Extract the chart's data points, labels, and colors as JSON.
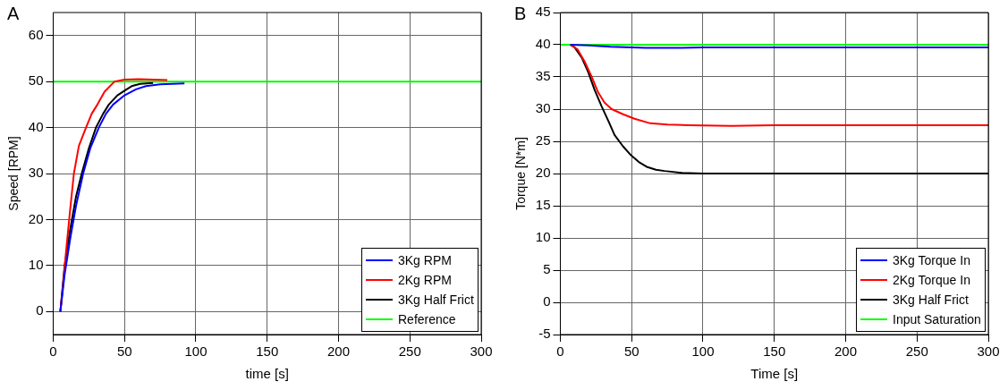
{
  "chart_data": [
    {
      "type": "line",
      "title": "A",
      "xlabel": "time [s]",
      "ylabel": "Speed [RPM]",
      "xlim": [
        0,
        300
      ],
      "xticks": [
        0,
        50,
        100,
        150,
        200,
        250,
        300
      ],
      "ylim": [
        -5,
        65
      ],
      "yticks": [
        0,
        10,
        20,
        30,
        40,
        50,
        60
      ],
      "grid": true,
      "legend": "bottom right",
      "line_style": "solid",
      "marker": "none",
      "series": [
        {
          "name": "3Kg RPM",
          "color": "#0000ff",
          "x": [
            5,
            8,
            12,
            16,
            21,
            26,
            32,
            37,
            42,
            50,
            58,
            65,
            75,
            92
          ],
          "values": [
            0,
            8,
            16,
            23,
            30,
            35.5,
            40,
            43,
            45,
            47,
            48.3,
            49,
            49.4,
            49.6
          ]
        },
        {
          "name": "2Kg RPM",
          "color": "#ff0000",
          "x": [
            5,
            7,
            9,
            11.5,
            14.5,
            18,
            23,
            27,
            31,
            36,
            43,
            50,
            60,
            70,
            80
          ],
          "values": [
            0,
            6,
            13,
            21,
            30,
            36,
            40,
            43,
            45,
            47.8,
            50,
            50.4,
            50.5,
            50.4,
            50.3
          ]
        },
        {
          "name": "3Kg Half Frict",
          "color": "#000000",
          "x": [
            5,
            8,
            12,
            16,
            20,
            25,
            30,
            35,
            39,
            45,
            50,
            55,
            61,
            70
          ],
          "values": [
            0,
            10,
            18,
            25,
            30,
            35.5,
            40,
            43,
            45,
            47,
            48,
            49,
            49.5,
            49.7
          ]
        },
        {
          "name": "Reference",
          "color": "#00ff00",
          "x": [
            0,
            300
          ],
          "values": [
            50,
            50
          ]
        }
      ]
    },
    {
      "type": "line",
      "title": "B",
      "xlabel": "Time [s]",
      "ylabel": "Torque [N*m]",
      "xlim": [
        0,
        300
      ],
      "xticks": [
        0,
        50,
        100,
        150,
        200,
        250,
        300
      ],
      "ylim": [
        -5,
        45
      ],
      "yticks": [
        -5,
        0,
        5,
        10,
        15,
        20,
        25,
        30,
        35,
        40,
        45
      ],
      "grid": true,
      "legend": "bottom right",
      "line_style": "solid",
      "marker": "none",
      "series": [
        {
          "name": "3Kg Torque In",
          "color": "#0000ff",
          "x": [
            7,
            20,
            35,
            50,
            60,
            80,
            100,
            150,
            200,
            250,
            300
          ],
          "values": [
            40,
            39.9,
            39.7,
            39.6,
            39.5,
            39.5,
            39.6,
            39.6,
            39.6,
            39.6,
            39.6
          ]
        },
        {
          "name": "2Kg Torque In",
          "color": "#ff0000",
          "x": [
            7,
            12,
            17,
            22,
            26.5,
            31,
            36,
            44,
            52,
            63,
            75,
            90,
            120,
            150,
            200,
            250,
            300
          ],
          "values": [
            40,
            39.3,
            37.4,
            35,
            32.6,
            31,
            30,
            29.2,
            28.5,
            27.8,
            27.6,
            27.5,
            27.4,
            27.5,
            27.5,
            27.5,
            27.5
          ]
        },
        {
          "name": "3Kg Half Frict",
          "color": "#000000",
          "x": [
            7,
            10,
            15,
            19.6,
            24,
            29,
            34,
            38,
            44,
            49.7,
            55,
            61,
            67,
            73,
            85,
            100,
            150,
            200,
            250,
            300
          ],
          "values": [
            40,
            39.6,
            38,
            35.7,
            33,
            30.4,
            28,
            26,
            24.2,
            22.8,
            21.8,
            21,
            20.6,
            20.4,
            20.1,
            20,
            20,
            20,
            20,
            20
          ]
        },
        {
          "name": "Input Saturation",
          "color": "#00ff00",
          "x": [
            0,
            300
          ],
          "values": [
            40,
            40
          ]
        }
      ]
    }
  ]
}
